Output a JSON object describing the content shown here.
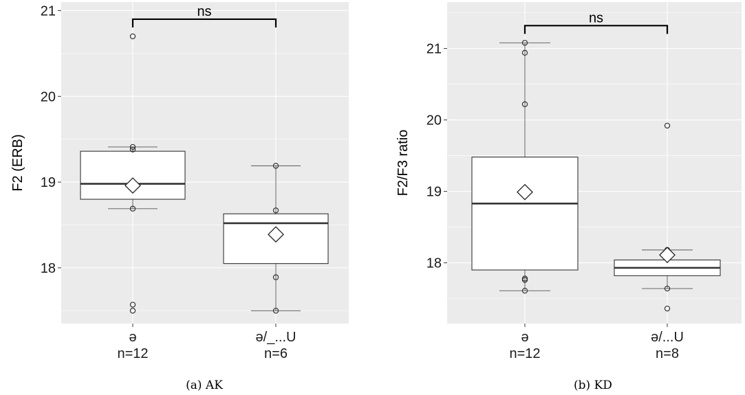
{
  "chart_data": [
    {
      "type": "box",
      "caption": "(a) AK",
      "ylabel": "F2 (ERB)",
      "xlabel": "",
      "ylim": [
        17.35,
        21.1
      ],
      "yticks": [
        18,
        19,
        20,
        21
      ],
      "grid": true,
      "categories": [
        "ə\nn=12",
        "ə/_...U\nn=6"
      ],
      "groups": [
        {
          "label": "ə",
          "n_label": "n=12",
          "q1": 18.8,
          "median": 18.98,
          "q3": 19.36,
          "whisker_low": 18.69,
          "whisker_high": 19.41,
          "mean": 18.96,
          "points": [
            20.7,
            19.41,
            19.38,
            18.69,
            17.57,
            17.5
          ]
        },
        {
          "label": "ə/_...U",
          "n_label": "n=6",
          "q1": 18.05,
          "median": 18.52,
          "q3": 18.63,
          "whisker_low": 17.5,
          "whisker_high": 19.19,
          "mean": 18.39,
          "points": [
            19.19,
            18.67,
            17.89,
            17.5
          ]
        }
      ],
      "comparison": {
        "label": "ns",
        "y": 20.9
      }
    },
    {
      "type": "box",
      "caption": "(b) KD",
      "ylabel": "F2/F3 ratio",
      "xlabel": "",
      "ylim": [
        17.15,
        21.65
      ],
      "yticks": [
        18,
        19,
        20,
        21
      ],
      "grid": true,
      "categories": [
        "ə\nn=12",
        "ə/...U\nn=8"
      ],
      "groups": [
        {
          "label": "ə",
          "n_label": "n=12",
          "q1": 17.9,
          "median": 18.83,
          "q3": 19.48,
          "whisker_low": 17.61,
          "whisker_high": 21.08,
          "mean": 18.99,
          "points": [
            21.08,
            20.94,
            20.22,
            17.78,
            17.76,
            17.61
          ]
        },
        {
          "label": "ə/...U",
          "n_label": "n=8",
          "q1": 17.82,
          "median": 17.93,
          "q3": 18.04,
          "whisker_low": 17.64,
          "whisker_high": 18.18,
          "mean": 18.11,
          "points": [
            19.92,
            18.18,
            17.64,
            17.36
          ]
        }
      ],
      "comparison": {
        "label": "ns",
        "y": 21.32
      }
    }
  ]
}
